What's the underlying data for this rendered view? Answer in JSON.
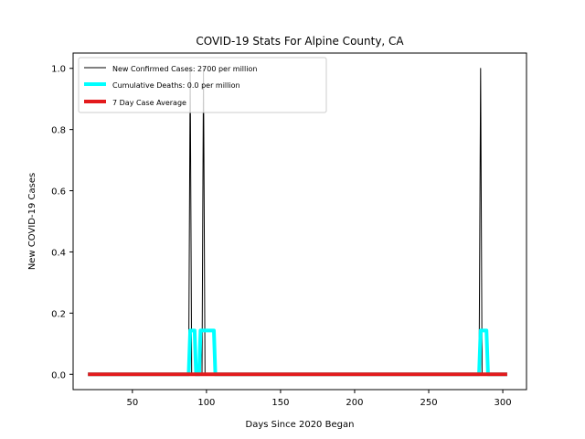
{
  "chart_data": {
    "type": "line",
    "title": "COVID-19 Stats For Alpine County, CA",
    "xlabel": "Days Since 2020 Began",
    "ylabel": "New COVID-19 Cases",
    "xlim": [
      10,
      316
    ],
    "ylim": [
      -0.05,
      1.05
    ],
    "x_ticks": [
      50,
      100,
      150,
      200,
      250,
      300
    ],
    "x_tick_labels": [
      "50",
      "100",
      "150",
      "200",
      "250",
      "300"
    ],
    "y_ticks": [
      0.0,
      0.2,
      0.4,
      0.6,
      0.8,
      1.0
    ],
    "y_tick_labels": [
      "0.0",
      "0.2",
      "0.4",
      "0.6",
      "0.8",
      "1.0"
    ],
    "grid": false,
    "legend_position": "top-left",
    "series": [
      {
        "name": "New Confirmed Cases: 2700 per million",
        "color": "#000000",
        "style": "thin",
        "x": [
          20,
          88,
          89,
          90,
          97,
          98,
          99,
          284,
          285,
          286,
          303
        ],
        "y": [
          0,
          0,
          1,
          0,
          0,
          1,
          0,
          0,
          1,
          0,
          0
        ]
      },
      {
        "name": "Cumulative Deaths: 0.0 per million",
        "color": "#00ffff",
        "style": "thick",
        "x": [
          20,
          88,
          89,
          92,
          93,
          95,
          96,
          98,
          99,
          102,
          103,
          105,
          106,
          284,
          285,
          289,
          290,
          303
        ],
        "y": [
          0,
          0,
          0.143,
          0.143,
          0,
          0,
          0.143,
          0.143,
          0.143,
          0.143,
          0.143,
          0.143,
          0,
          0,
          0.143,
          0.143,
          0,
          0
        ]
      },
      {
        "name": "7 Day Case Average",
        "color": "#e31a1c",
        "style": "thick",
        "x": [
          20,
          303
        ],
        "y": [
          0,
          0
        ]
      }
    ]
  }
}
